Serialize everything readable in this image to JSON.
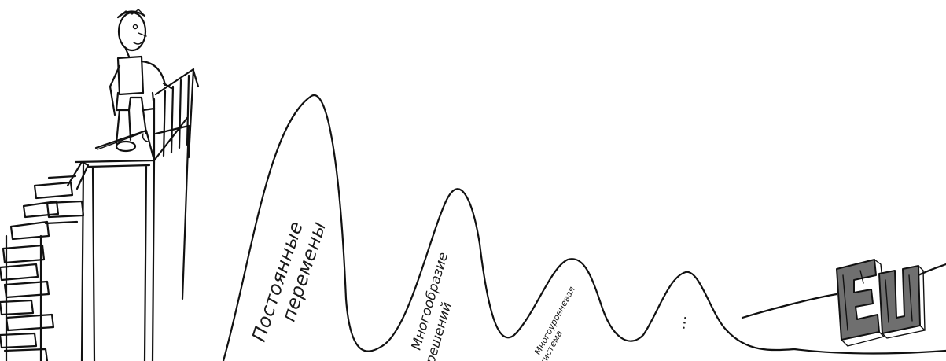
{
  "peaks": [
    {
      "lines": [
        "Постоянные",
        "перемены"
      ]
    },
    {
      "lines": [
        "Многообразие",
        "решений"
      ]
    },
    {
      "lines": [
        "Многоуровневая",
        "система"
      ]
    },
    {
      "lines": [
        "..."
      ]
    }
  ],
  "logo": {
    "text": "EU"
  },
  "colors": {
    "ink": "#111111",
    "background": "#ffffff",
    "logo_fill": "#6f6f6f"
  }
}
